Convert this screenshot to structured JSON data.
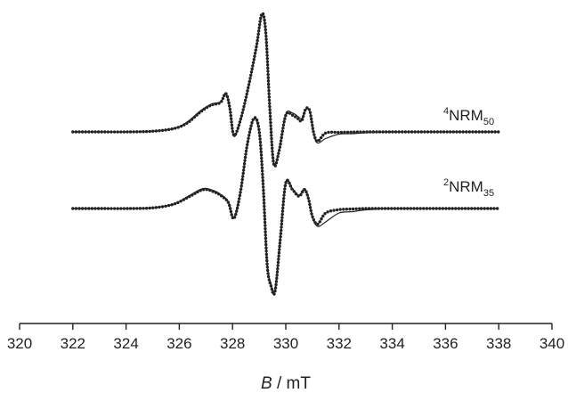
{
  "chart_data": {
    "type": "line",
    "title": "",
    "xlabel_italic": "B",
    "xlabel_unit": " / mT",
    "ylabel": "",
    "xlim": [
      320,
      340
    ],
    "x_ticks": [
      "320",
      "322",
      "324",
      "326",
      "328",
      "330",
      "332",
      "334",
      "336",
      "338",
      "340"
    ],
    "y_axis_visible": false,
    "grid": false,
    "colors": {
      "line": "#222222",
      "text": "#222222",
      "background": "#ffffff"
    },
    "series": [
      {
        "label_sup": "4",
        "label_main": "NRM",
        "label_sub": "50",
        "baseline": 0,
        "x": [
          322,
          323,
          324,
          325,
          325.8,
          326.3,
          326.8,
          327.2,
          327.55,
          327.75,
          327.9,
          328.05,
          328.3,
          328.6,
          328.9,
          329.1,
          329.25,
          329.4,
          329.55,
          329.75,
          330.0,
          330.25,
          330.45,
          330.6,
          330.75,
          330.9,
          331.05,
          331.2,
          331.5,
          332.0,
          332.5,
          333.0,
          334.0,
          336.0,
          338.0
        ],
        "y": [
          0,
          0,
          0,
          0.3,
          1.5,
          4.5,
          9.5,
          12.5,
          13.5,
          17.5,
          10,
          -2,
          5,
          20,
          38,
          52,
          44,
          10,
          -14,
          -8,
          8,
          8.5,
          7,
          6,
          10,
          9,
          -1,
          -5,
          -3,
          -1,
          -0.8,
          -0.4,
          0,
          0,
          0
        ],
        "dotted_y": [
          0,
          0,
          0,
          0.3,
          1.5,
          4.0,
          9.0,
          12.0,
          13.2,
          17.2,
          10.5,
          -1.5,
          5.5,
          20.5,
          38.5,
          53,
          44.5,
          10.5,
          -14.5,
          -8.5,
          7.5,
          7.5,
          6,
          5,
          10.3,
          9.5,
          -0.5,
          -4.2,
          -0.5,
          -0.2,
          -0.1,
          0,
          0,
          0,
          0
        ]
      },
      {
        "label_sup": "2",
        "label_main": "NRM",
        "label_sub": "35",
        "baseline": 0,
        "x": [
          322,
          323,
          324,
          325,
          325.8,
          326.4,
          326.9,
          327.3,
          327.6,
          327.85,
          328.05,
          328.3,
          328.55,
          328.8,
          329.0,
          329.15,
          329.3,
          329.45,
          329.6,
          329.8,
          330.0,
          330.25,
          330.5,
          330.7,
          330.85,
          331.0,
          331.2,
          331.5,
          332.0,
          332.5,
          333.0,
          334.0,
          336.0,
          338.0
        ],
        "y": [
          0,
          0,
          0,
          0.3,
          2,
          6,
          9,
          8,
          6,
          3,
          -4,
          8,
          28,
          40,
          34,
          10,
          -24,
          -34,
          -36,
          -12,
          12,
          9,
          6,
          9,
          5,
          -4,
          -8,
          -6,
          -2,
          -1.4,
          -0.6,
          0,
          0,
          0
        ],
        "dotted_y": [
          0,
          0,
          0,
          0.3,
          2,
          5.5,
          8.5,
          7.5,
          5.5,
          2.5,
          -4.5,
          7.5,
          28.5,
          40.5,
          35,
          10.5,
          -25,
          -35,
          -37,
          -13,
          11.5,
          8.5,
          5.5,
          8.5,
          4.5,
          -3.5,
          -7,
          -2,
          -0.5,
          -0.2,
          0,
          0,
          0,
          0
        ]
      }
    ]
  }
}
